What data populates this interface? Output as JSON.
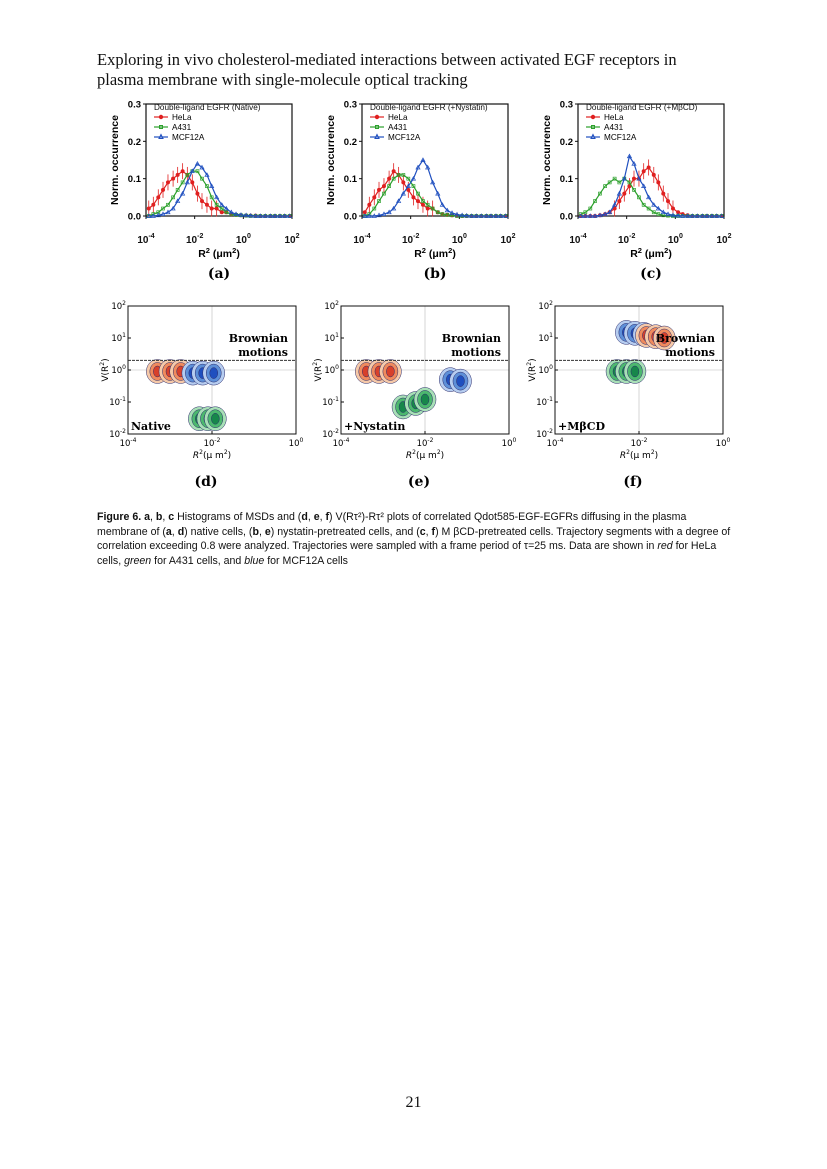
{
  "header": {
    "title_line1": "Exploring in vivo cholesterol-mediated interactions between activated EGF receptors in",
    "title_line2": "plasma membrane with single-molecule optical tracking"
  },
  "colors": {
    "hela": "#e02020",
    "a431": "#2ca02c",
    "mcf12a": "#1f4fbf",
    "dashed": "#333333"
  },
  "histograms": {
    "ylabel": "Norm. occurrence",
    "xlabel_main": "R",
    "xlabel_sup": "2",
    "xlabel_unit": " (μm",
    "xlabel_unit_sup": "2",
    "xlabel_close": ")",
    "legend": {
      "hela": "HeLa",
      "a431": "A431",
      "mcf12a": "MCF12A"
    },
    "y_ticks": [
      "0.3",
      "0.2",
      "0.1",
      "0.0"
    ],
    "x_ticks": [
      {
        "base": "10",
        "exp": "-4"
      },
      {
        "base": "10",
        "exp": "-2"
      },
      {
        "base": "10",
        "exp": "0"
      },
      {
        "base": "10",
        "exp": "2"
      }
    ],
    "panels": [
      {
        "title": "Double-ligand EGFR (Native)",
        "label": "(a)"
      },
      {
        "title": "Double-ligand EGFR (+Nystatin)",
        "label": "(b)"
      },
      {
        "title": "Double-ligand EGFR (+MβCD)",
        "label": "(c)"
      }
    ]
  },
  "scatter_plots": {
    "ylabel_main": "V(R",
    "ylabel_sup": "2",
    "ylabel_close": ")",
    "xlabel_main": "R",
    "xlabel_sup": "2",
    "xlabel_unit": "(μ m",
    "xlabel_unit_sup": "2",
    "xlabel_close": ")",
    "brownian_line1": "Brownian",
    "brownian_line2": "motions",
    "y_ticks": [
      {
        "base": "10",
        "exp": "2"
      },
      {
        "base": "10",
        "exp": "1"
      },
      {
        "base": "10",
        "exp": "0"
      },
      {
        "base": "10",
        "exp": "-1"
      },
      {
        "base": "10",
        "exp": "-2"
      }
    ],
    "x_ticks": [
      {
        "base": "10",
        "exp": "-4"
      },
      {
        "base": "10",
        "exp": "-2"
      },
      {
        "base": "10",
        "exp": "0"
      }
    ],
    "panels": [
      {
        "condition": "Native",
        "label": "(d)"
      },
      {
        "condition": "+Nystatin",
        "label": "(e)"
      },
      {
        "condition": "+MβCD",
        "label": "(f)"
      }
    ]
  },
  "caption": {
    "fig_label": "Figure 6.",
    "part1": " a",
    "part2": ", ",
    "part3": "b",
    "part4": ", ",
    "part5": "c",
    "part6": " Histograms of MSDs and (",
    "part7": "d",
    "part8": ", ",
    "part9": "e",
    "part10": ", ",
    "part11": "f",
    "part12": ") V(Rτ²)-Rτ² plots of correlated Qdot585-EGF-EGFRs diffusing in the plasma membrane of (",
    "part13": "a",
    "part14": ", ",
    "part15": "d",
    "part16": ") native cells, (",
    "part17": "b",
    "part18": ", ",
    "part19": "e",
    "part20": ") nystatin-pretreated cells, and (",
    "part21": "c",
    "part22": ", ",
    "part23": "f",
    "part24": ") M βCD-pretreated cells. Trajectory segments with a degree of correlation exceeding 0.8 were analyzed. Trajectories were sampled with a frame period of τ=25 ms. Data are shown in ",
    "red": "red",
    "part25": " for HeLa cells, ",
    "green": "green",
    "part26": " for A431 cells, and ",
    "blue": "blue",
    "part27": " for MCF12A cells"
  },
  "page_number": "21",
  "chart_data": [
    {
      "type": "line",
      "panel": "(a)",
      "title": "Double-ligand EGFR (Native)",
      "xscale": "log",
      "xlim": [
        0.0001,
        100
      ],
      "ylim": [
        0,
        0.3
      ],
      "x": [
        0.00013,
        0.0002,
        0.00032,
        0.0005,
        0.0008,
        0.0013,
        0.002,
        0.0032,
        0.005,
        0.008,
        0.013,
        0.02,
        0.032,
        0.05,
        0.08,
        0.13,
        0.2,
        0.32,
        0.5,
        0.8,
        1.3,
        2,
        3.2,
        5,
        8,
        13,
        20,
        32,
        50,
        80
      ],
      "series": [
        {
          "name": "HeLa",
          "values": [
            0.02,
            0.03,
            0.05,
            0.07,
            0.09,
            0.1,
            0.11,
            0.12,
            0.11,
            0.09,
            0.06,
            0.04,
            0.03,
            0.02,
            0.02,
            0.01,
            0.01,
            0.005,
            0.003,
            0.002,
            0.001,
            0.001,
            0.001,
            0.0,
            0.0,
            0.0,
            0.0,
            0.0,
            0.0,
            0.0
          ]
        },
        {
          "name": "A431",
          "values": [
            0.0,
            0.005,
            0.01,
            0.02,
            0.03,
            0.05,
            0.07,
            0.09,
            0.11,
            0.12,
            0.12,
            0.1,
            0.08,
            0.05,
            0.03,
            0.02,
            0.01,
            0.005,
            0.003,
            0.002,
            0.001,
            0.0,
            0.0,
            0.0,
            0.0,
            0.0,
            0.0,
            0.0,
            0.0,
            0.0
          ]
        },
        {
          "name": "MCF12A",
          "values": [
            0.0,
            0.0,
            0.002,
            0.005,
            0.01,
            0.02,
            0.04,
            0.06,
            0.09,
            0.12,
            0.14,
            0.13,
            0.11,
            0.08,
            0.05,
            0.03,
            0.02,
            0.01,
            0.005,
            0.003,
            0.002,
            0.001,
            0.0,
            0.0,
            0.0,
            0.0,
            0.0,
            0.0,
            0.0,
            0.0
          ]
        }
      ]
    },
    {
      "type": "line",
      "panel": "(b)",
      "title": "Double-ligand EGFR (+Nystatin)",
      "xscale": "log",
      "xlim": [
        0.0001,
        100
      ],
      "ylim": [
        0,
        0.3
      ],
      "x": [
        0.00013,
        0.0002,
        0.00032,
        0.0005,
        0.0008,
        0.0013,
        0.002,
        0.0032,
        0.005,
        0.008,
        0.013,
        0.02,
        0.032,
        0.05,
        0.08,
        0.13,
        0.2,
        0.32,
        0.5,
        0.8,
        1.3,
        2,
        3.2,
        5,
        8,
        13,
        20,
        32,
        50,
        80
      ],
      "series": [
        {
          "name": "HeLa",
          "values": [
            0.01,
            0.03,
            0.05,
            0.07,
            0.08,
            0.1,
            0.12,
            0.11,
            0.09,
            0.07,
            0.05,
            0.04,
            0.03,
            0.02,
            0.02,
            0.01,
            0.005,
            0.003,
            0.002,
            0.001,
            0.0,
            0.0,
            0.0,
            0.0,
            0.0,
            0.0,
            0.0,
            0.0,
            0.0,
            0.0
          ]
        },
        {
          "name": "A431",
          "values": [
            0.0,
            0.005,
            0.02,
            0.04,
            0.06,
            0.08,
            0.1,
            0.11,
            0.11,
            0.1,
            0.08,
            0.06,
            0.04,
            0.03,
            0.02,
            0.01,
            0.005,
            0.003,
            0.002,
            0.0,
            0.0,
            0.0,
            0.0,
            0.0,
            0.0,
            0.0,
            0.0,
            0.0,
            0.0,
            0.0
          ]
        },
        {
          "name": "MCF12A",
          "values": [
            0.0,
            0.0,
            0.0,
            0.002,
            0.005,
            0.01,
            0.02,
            0.04,
            0.06,
            0.08,
            0.1,
            0.13,
            0.15,
            0.13,
            0.09,
            0.06,
            0.03,
            0.015,
            0.008,
            0.004,
            0.002,
            0.001,
            0.0,
            0.0,
            0.0,
            0.0,
            0.0,
            0.0,
            0.0,
            0.0
          ]
        }
      ]
    },
    {
      "type": "line",
      "panel": "(c)",
      "title": "Double-ligand EGFR (+MβCD)",
      "xscale": "log",
      "xlim": [
        0.0001,
        100
      ],
      "ylim": [
        0,
        0.3
      ],
      "x": [
        0.00013,
        0.0002,
        0.00032,
        0.0005,
        0.0008,
        0.0013,
        0.002,
        0.0032,
        0.005,
        0.008,
        0.013,
        0.02,
        0.032,
        0.05,
        0.08,
        0.13,
        0.2,
        0.32,
        0.5,
        0.8,
        1.3,
        2,
        3.2,
        5,
        8,
        13,
        20,
        32,
        50,
        80
      ],
      "series": [
        {
          "name": "HeLa",
          "values": [
            0.0,
            0.0,
            0.0,
            0.0,
            0.002,
            0.005,
            0.01,
            0.02,
            0.04,
            0.06,
            0.08,
            0.1,
            0.1,
            0.12,
            0.13,
            0.11,
            0.09,
            0.06,
            0.04,
            0.02,
            0.01,
            0.005,
            0.002,
            0.0,
            0.0,
            0.0,
            0.0,
            0.0,
            0.0,
            0.0
          ]
        },
        {
          "name": "A431",
          "values": [
            0.005,
            0.01,
            0.02,
            0.04,
            0.06,
            0.08,
            0.09,
            0.1,
            0.09,
            0.1,
            0.09,
            0.07,
            0.05,
            0.03,
            0.02,
            0.01,
            0.005,
            0.002,
            0.001,
            0.0,
            0.0,
            0.0,
            0.0,
            0.0,
            0.0,
            0.0,
            0.0,
            0.0,
            0.0,
            0.0
          ]
        },
        {
          "name": "MCF12A",
          "values": [
            0.0,
            0.0,
            0.0,
            0.0,
            0.002,
            0.005,
            0.01,
            0.03,
            0.06,
            0.1,
            0.16,
            0.14,
            0.1,
            0.08,
            0.05,
            0.03,
            0.02,
            0.01,
            0.005,
            0.002,
            0.001,
            0.0,
            0.0,
            0.0,
            0.0,
            0.0,
            0.0,
            0.0,
            0.0,
            0.0
          ]
        }
      ]
    },
    {
      "type": "heatmap",
      "panel": "(d)",
      "condition": "Native",
      "xscale": "log",
      "yscale": "log",
      "xlim": [
        0.0001,
        1
      ],
      "ylim": [
        0.01,
        100
      ],
      "threshold_line_y": 2,
      "clusters": [
        {
          "cell": "HeLa",
          "x": [
            0.0005,
            0.001,
            0.0018
          ],
          "y": [
            0.9,
            0.9,
            0.9
          ]
        },
        {
          "cell": "MCF12A",
          "x": [
            0.0035,
            0.006,
            0.011
          ],
          "y": [
            0.8,
            0.8,
            0.8
          ]
        },
        {
          "cell": "A431",
          "x": [
            0.005,
            0.008,
            0.012
          ],
          "y": [
            0.03,
            0.03,
            0.03
          ]
        }
      ]
    },
    {
      "type": "heatmap",
      "panel": "(e)",
      "condition": "+Nystatin",
      "xscale": "log",
      "yscale": "log",
      "xlim": [
        0.0001,
        1
      ],
      "ylim": [
        0.01,
        100
      ],
      "threshold_line_y": 2,
      "clusters": [
        {
          "cell": "HeLa",
          "x": [
            0.0004,
            0.0008,
            0.0015
          ],
          "y": [
            0.9,
            0.9,
            0.9
          ]
        },
        {
          "cell": "A431",
          "x": [
            0.003,
            0.006,
            0.01
          ],
          "y": [
            0.07,
            0.09,
            0.12
          ]
        },
        {
          "cell": "MCF12A",
          "x": [
            0.04,
            0.07
          ],
          "y": [
            0.5,
            0.45
          ]
        }
      ]
    },
    {
      "type": "heatmap",
      "panel": "(f)",
      "condition": "+MβCD",
      "xscale": "log",
      "yscale": "log",
      "xlim": [
        0.0001,
        1
      ],
      "ylim": [
        0.01,
        100
      ],
      "threshold_line_y": 2,
      "clusters": [
        {
          "cell": "MCF12A",
          "x": [
            0.005,
            0.008,
            0.013
          ],
          "y": [
            15,
            14,
            13
          ]
        },
        {
          "cell": "HeLa",
          "x": [
            0.015,
            0.025,
            0.04
          ],
          "y": [
            12,
            11,
            10
          ]
        },
        {
          "cell": "A431",
          "x": [
            0.003,
            0.005,
            0.008
          ],
          "y": [
            0.9,
            0.9,
            0.9
          ]
        }
      ]
    }
  ]
}
